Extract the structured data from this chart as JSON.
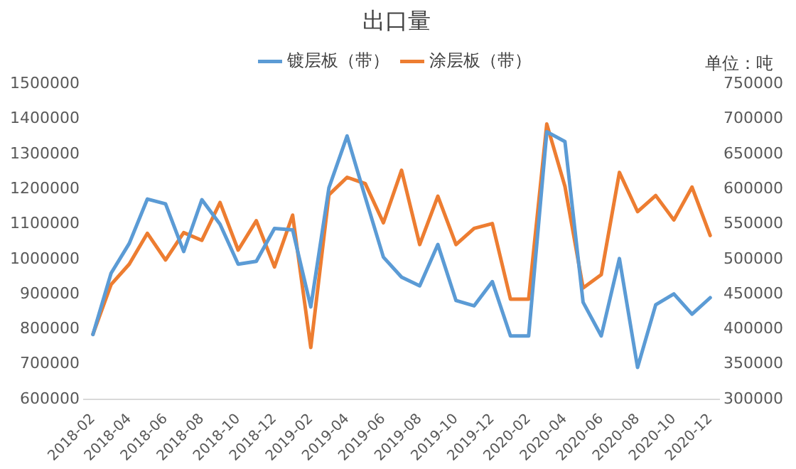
{
  "chart_data": {
    "type": "line",
    "title": "出口量",
    "categories": [
      "2018-02",
      null,
      "2018-04",
      null,
      "2018-06",
      null,
      "2018-08",
      null,
      "2018-10",
      null,
      "2018-12",
      null,
      "2019-02",
      null,
      "2019-04",
      null,
      "2019-06",
      null,
      "2019-08",
      null,
      "2019-10",
      null,
      "2019-12",
      null,
      "2020-02",
      null,
      "2020-04",
      null,
      "2020-06",
      null,
      "2020-08",
      null,
      "2020-10",
      null,
      "2020-12"
    ],
    "series": [
      {
        "name": "镀层板（带）",
        "color": "#5b9bd5",
        "values": [
          785000,
          960000,
          1045000,
          1172000,
          1158000,
          1022000,
          1170000,
          1100000,
          986000,
          994000,
          1088000,
          1084000,
          864000,
          1204000,
          1352000,
          1177000,
          1006000,
          949000,
          924000,
          1042000,
          882000,
          867000,
          936000,
          781000,
          781000,
          1364000,
          1336000,
          877000,
          781000,
          1002000,
          691000,
          870000,
          901000,
          843000,
          890000
        ]
      },
      {
        "name": "涂层板（带）",
        "color": "#ed7d31",
        "axis": "y2",
        "values": [
          393000,
          464000,
          493000,
          537000,
          499000,
          538000,
          527000,
          581000,
          513000,
          555000,
          489000,
          563000,
          374000,
          592000,
          617000,
          608000,
          552000,
          627000,
          521000,
          590000,
          521000,
          544000,
          551000,
          443000,
          443000,
          693000,
          604000,
          459000,
          478000,
          624000,
          568000,
          591000,
          556000,
          603000,
          534000
        ]
      }
    ],
    "ylim": [
      600000,
      1500000
    ],
    "yticks": [
      600000,
      700000,
      800000,
      900000,
      1000000,
      1100000,
      1200000,
      1300000,
      1400000,
      1500000
    ],
    "y2lim": [
      300000,
      750000
    ],
    "y2ticks": [
      300000,
      350000,
      400000,
      450000,
      500000,
      550000,
      600000,
      650000,
      700000,
      750000
    ],
    "annotations": [
      "单位：吨"
    ],
    "legend": "top",
    "grid": false,
    "marker": "none",
    "line_style": "solid"
  }
}
